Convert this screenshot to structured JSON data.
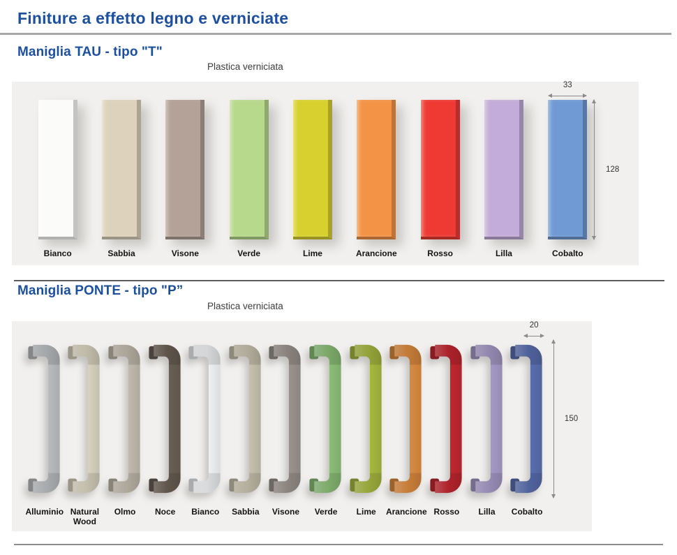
{
  "page": {
    "title": "Finiture a effetto legno e verniciate",
    "accent_color": "#1c509f",
    "panel_background": "#f1f0ee"
  },
  "sections": [
    {
      "heading": "Maniglia TAU - tipo \"T\"",
      "subheading": "Plastica verniciata",
      "handle_type": "tau-bar",
      "dimensions": {
        "width_label": "33",
        "height_label": "128"
      },
      "swatches": [
        {
          "label": "Bianco",
          "color": "#fbfbfa"
        },
        {
          "label": "Sabbia",
          "color": "#ddd2bb"
        },
        {
          "label": "Visone",
          "color": "#b4a198"
        },
        {
          "label": "Verde",
          "color": "#b7d98c"
        },
        {
          "label": "Lime",
          "color": "#d7d02f"
        },
        {
          "label": "Arancione",
          "color": "#f39346"
        },
        {
          "label": "Rosso",
          "color": "#ee3a33"
        },
        {
          "label": "Lilla",
          "color": "#c3acd9"
        },
        {
          "label": "Cobalto",
          "color": "#6f9ad3"
        }
      ]
    },
    {
      "heading": "Maniglia PONTE - tipo \"P”",
      "subheading": "Plastica verniciata",
      "handle_type": "ponte-bridge",
      "dimensions": {
        "width_label": "20",
        "height_label": "150"
      },
      "swatches": [
        {
          "label": "Alluminio",
          "color": "#bcbfc2"
        },
        {
          "label": "Natural Wood",
          "color": "#dbd5c1"
        },
        {
          "label": "Olmo",
          "color": "#c4bcae"
        },
        {
          "label": "Noce",
          "color": "#6b6054"
        },
        {
          "label": "Bianco",
          "color": "#f3f4f5"
        },
        {
          "label": "Sabbia",
          "color": "#c9c3b0"
        },
        {
          "label": "Visone",
          "color": "#9c958e"
        },
        {
          "label": "Verde",
          "color": "#8cc078"
        },
        {
          "label": "Lime",
          "color": "#a9ba42"
        },
        {
          "label": "Arancione",
          "color": "#de8c3f"
        },
        {
          "label": "Rosso",
          "color": "#c32730"
        },
        {
          "label": "Lilla",
          "color": "#a79bc8"
        },
        {
          "label": "Cobalto",
          "color": "#5a6fb0"
        }
      ]
    }
  ]
}
